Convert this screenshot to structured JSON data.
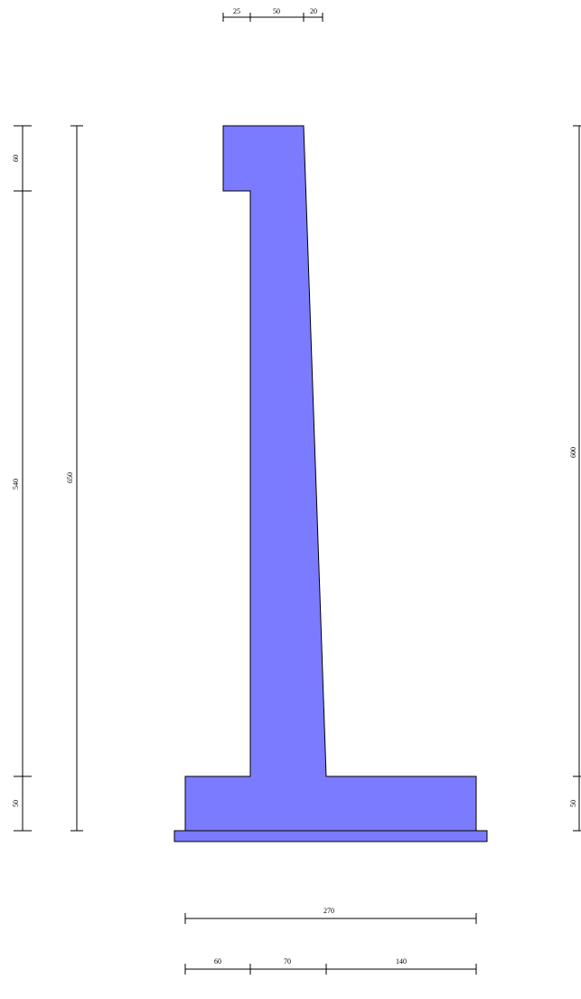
{
  "colors": {
    "wall_fill": "#7b7bff",
    "stroke": "#000000",
    "background": "#ffffff"
  },
  "dimensions": {
    "top": {
      "toe_cap": "25",
      "stem_top": "50",
      "heel_cap": "20"
    },
    "left": {
      "cap_height": "60",
      "stem_height": "540",
      "base_height": "50",
      "overall_height": "650"
    },
    "right": {
      "stem_height": "600",
      "base_height": "50"
    },
    "bottom": {
      "total_width": "270",
      "toe": "60",
      "stem_base": "70",
      "heel": "140"
    }
  }
}
